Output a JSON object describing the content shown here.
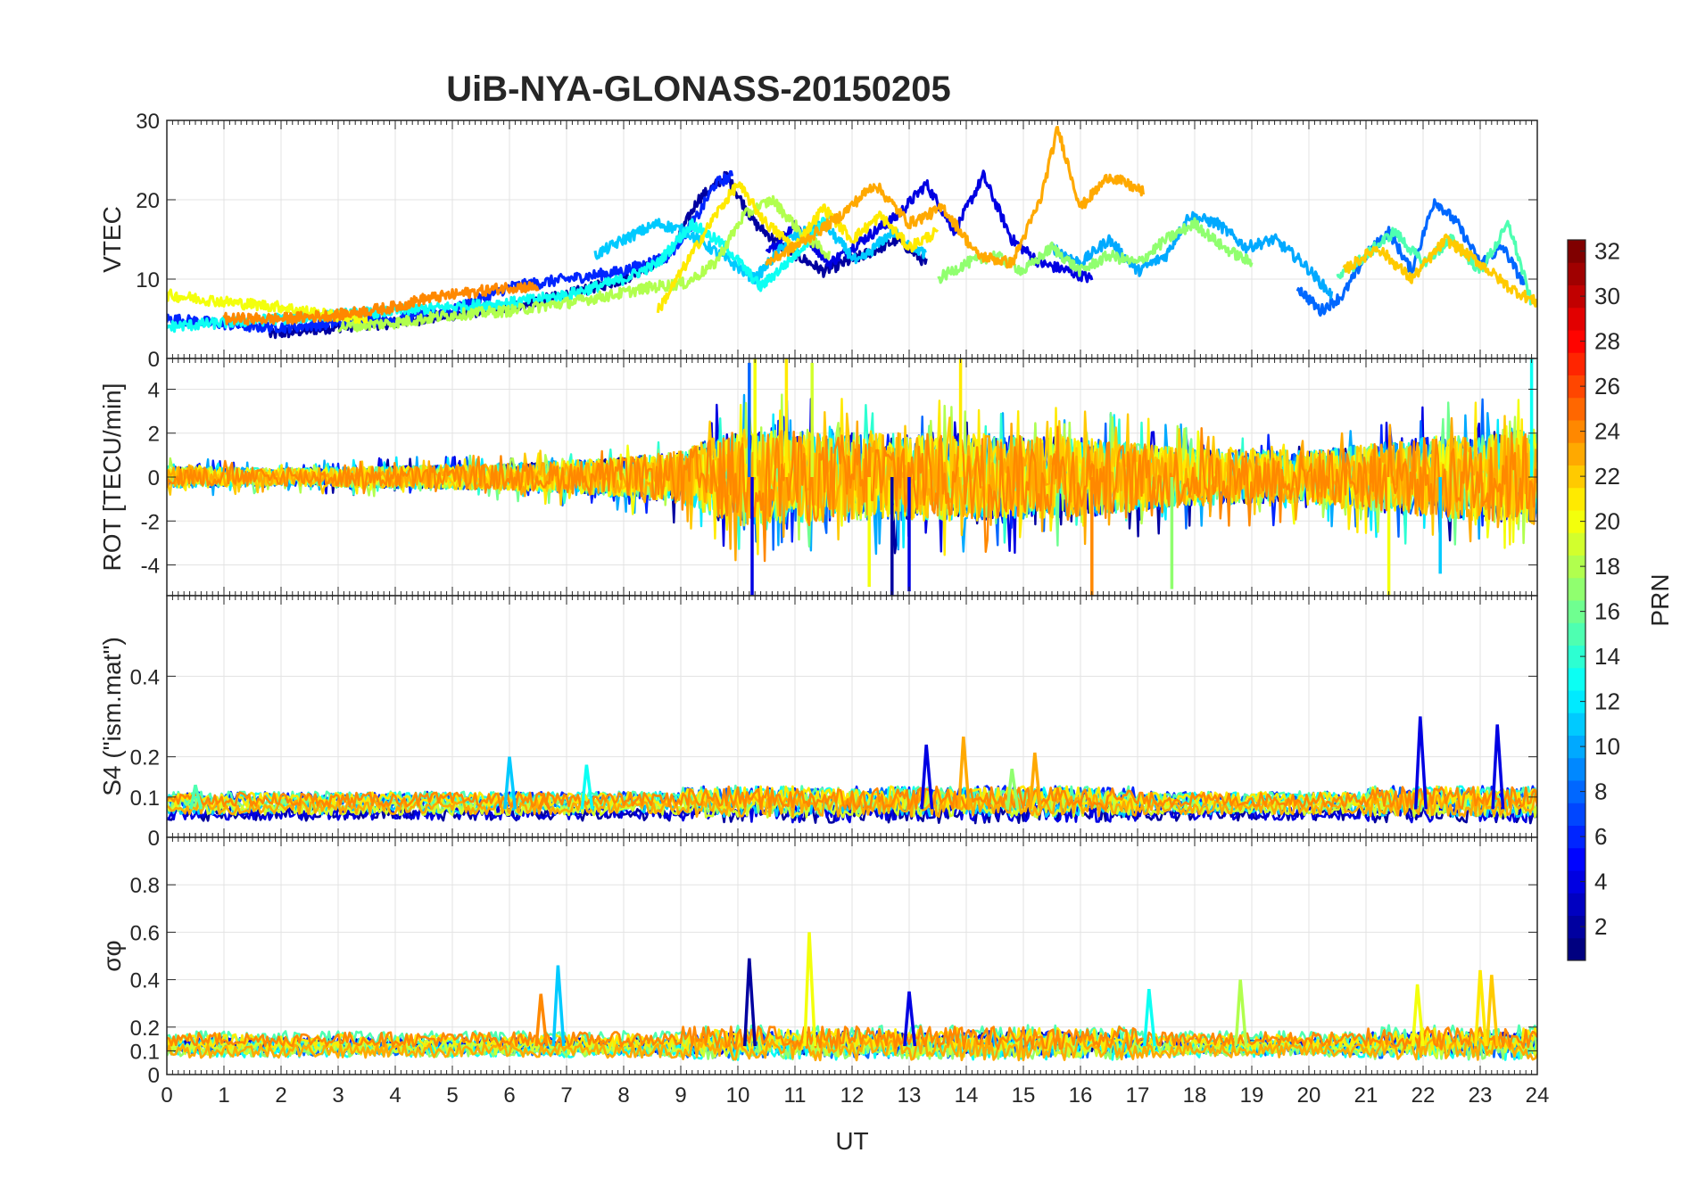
{
  "figure": {
    "title": "UiB-NYA-GLONASS-20150205",
    "xlabel": "UT"
  },
  "chart_data": [
    {
      "type": "line",
      "panel": "vtec",
      "ylabel": "VTEC",
      "xlim": [
        0,
        24
      ],
      "ylim": [
        0,
        30
      ],
      "yticks": [
        0,
        10,
        20,
        30
      ],
      "xticks": [
        0,
        1,
        2,
        3,
        4,
        5,
        6,
        7,
        8,
        9,
        10,
        11,
        12,
        13,
        14,
        15,
        16,
        17,
        18,
        19,
        20,
        21,
        22,
        23,
        24
      ],
      "grid": true,
      "series": [
        {
          "name": "PRN 2",
          "prn": 2,
          "x": [
            1.8,
            3,
            4,
            5,
            6,
            7,
            8,
            8.8,
            9.3,
            9.8,
            10.3,
            10.8,
            11.5,
            12.2,
            12.8,
            13.3
          ],
          "y": [
            3,
            4,
            4.5,
            5.5,
            6.5,
            8,
            10,
            13,
            20,
            23,
            17,
            14,
            11,
            13,
            15,
            12
          ]
        },
        {
          "name": "PRN 4",
          "prn": 4,
          "x": [
            10.5,
            11,
            11.6,
            12.2,
            12.8,
            13.3,
            13.8,
            14.3,
            14.8,
            15.3,
            15.8,
            16.2
          ],
          "y": [
            13,
            17,
            12,
            15,
            18,
            22,
            16,
            23,
            15,
            12,
            11,
            10
          ]
        },
        {
          "name": "PRN 6",
          "prn": 6,
          "x": [
            0,
            0.8,
            1.5,
            2.2,
            3,
            4,
            5,
            6,
            7,
            8,
            8.8,
            9.3,
            9.6,
            9.9
          ],
          "y": [
            5,
            4.5,
            4,
            4,
            4.5,
            5,
            6,
            9,
            10,
            11,
            13,
            18,
            22,
            23
          ]
        },
        {
          "name": "PRN 8",
          "prn": 8,
          "x": [
            19.8,
            20.2,
            20.6,
            21,
            21.4,
            21.8,
            22.2,
            22.6,
            23,
            23.4,
            23.8
          ],
          "y": [
            9,
            6,
            8,
            13,
            16,
            11,
            20,
            17,
            12,
            14,
            9
          ]
        },
        {
          "name": "PRN 10",
          "prn": 10,
          "x": [
            15.5,
            16,
            16.5,
            17,
            17.5,
            17.9,
            18.4,
            18.9,
            19.4,
            19.9,
            20.4
          ],
          "y": [
            14,
            12,
            15,
            11,
            13,
            18,
            17,
            14,
            15,
            12,
            8
          ]
        },
        {
          "name": "PRN 11",
          "prn": 11,
          "x": [
            7.5,
            8,
            8.6,
            9.1,
            9.7,
            10.3,
            10.9,
            11.5,
            12.1,
            12.7,
            13.3
          ],
          "y": [
            13,
            15,
            17,
            16,
            13,
            10,
            15,
            17,
            12,
            16,
            13
          ]
        },
        {
          "name": "PRN 13",
          "prn": 13,
          "x": [
            0,
            1,
            2,
            3,
            4,
            5,
            6,
            7,
            8,
            8.6,
            9.2,
            9.8,
            10.4,
            11,
            11.6
          ],
          "y": [
            4,
            4.5,
            5,
            5.5,
            6,
            6.5,
            7,
            8,
            10,
            12,
            17,
            14,
            9,
            13,
            18
          ]
        },
        {
          "name": "PRN 15",
          "prn": 15,
          "x": [
            20.5,
            21,
            21.5,
            22,
            22.5,
            23,
            23.5,
            23.9
          ],
          "y": [
            10,
            13,
            16,
            12,
            15,
            11,
            17,
            7
          ]
        },
        {
          "name": "PRN 17",
          "prn": 17,
          "x": [
            13.5,
            14,
            14.5,
            15,
            15.5,
            16,
            16.5,
            17,
            17.5,
            18,
            18.5,
            19
          ],
          "y": [
            10,
            12,
            13,
            11,
            14,
            11,
            13,
            12,
            15,
            17,
            14,
            12
          ]
        },
        {
          "name": "PRN 18",
          "prn": 18,
          "x": [
            3,
            4,
            5,
            6,
            7,
            7.8,
            8.5,
            9.1,
            9.6,
            10.1,
            10.6,
            11.1,
            11.6
          ],
          "y": [
            4,
            4.5,
            5.5,
            6,
            7,
            8,
            9,
            9.5,
            12,
            18,
            20,
            16,
            13
          ]
        },
        {
          "name": "PRN 20",
          "prn": 20,
          "x": [
            0,
            0.6,
            1.2,
            2,
            2.8,
            3.5
          ],
          "y": [
            8,
            7.5,
            7,
            6.5,
            5.5,
            5
          ]
        },
        {
          "name": "PRN 21",
          "prn": 21,
          "x": [
            8.6,
            9.1,
            9.6,
            10,
            10.5,
            11,
            11.5,
            12,
            12.5,
            13,
            13.5
          ],
          "y": [
            6,
            12,
            18,
            22,
            17,
            14,
            19,
            15,
            18,
            14,
            16
          ]
        },
        {
          "name": "PRN 22",
          "prn": 22,
          "x": [
            20.6,
            21.2,
            21.8,
            22.4,
            23,
            23.5,
            24
          ],
          "y": [
            11,
            14,
            10,
            15,
            12,
            9,
            7
          ]
        },
        {
          "name": "PRN 23",
          "prn": 23,
          "x": [
            10.5,
            11.2,
            11.8,
            12.4,
            13,
            13.6,
            14.2,
            14.8,
            15.3,
            15.6,
            16,
            16.5,
            17.1
          ],
          "y": [
            12,
            15,
            18,
            22,
            17,
            19,
            13,
            12,
            20,
            29,
            19,
            23,
            21
          ]
        },
        {
          "name": "PRN 24",
          "prn": 24,
          "x": [
            1,
            2,
            3,
            3.5,
            4,
            4.5,
            5,
            5.5,
            6,
            6.5
          ],
          "y": [
            5,
            5,
            5.5,
            6,
            6.5,
            7.5,
            8,
            8.5,
            9,
            9
          ]
        }
      ]
    },
    {
      "type": "line",
      "panel": "rot",
      "ylabel": "ROT [TECU/min]",
      "xlim": [
        0,
        24
      ],
      "ylim": [
        -5.4,
        5.4
      ],
      "yticks": [
        -4,
        -2,
        0,
        2,
        4
      ],
      "grid": true,
      "envelope": {
        "x": [
          0,
          2,
          4,
          6,
          8,
          9,
          10,
          12,
          14,
          16,
          18,
          20,
          22,
          24
        ],
        "amp": [
          0.5,
          0.4,
          0.5,
          0.6,
          0.9,
          1.2,
          2.2,
          2,
          2,
          1.8,
          1.3,
          1.2,
          1.8,
          2.2
        ]
      },
      "spikes": [
        {
          "prn": 4,
          "x": 10.25,
          "y": -5.4
        },
        {
          "prn": 20,
          "x": 10.3,
          "y": 5.4
        },
        {
          "prn": 21,
          "x": 10.85,
          "y": 5.4
        },
        {
          "prn": 8,
          "x": 10.2,
          "y": 5.2
        },
        {
          "prn": 2,
          "x": 12.7,
          "y": -5.4
        },
        {
          "prn": 4,
          "x": 13.0,
          "y": -5.2
        },
        {
          "prn": 20,
          "x": 12.3,
          "y": -5
        },
        {
          "prn": 21,
          "x": 13.9,
          "y": 5.4
        },
        {
          "prn": 24,
          "x": 16.2,
          "y": -5.4
        },
        {
          "prn": 17,
          "x": 17.6,
          "y": -5.1
        },
        {
          "prn": 20,
          "x": 21.4,
          "y": -5.4
        },
        {
          "prn": 13,
          "x": 23.9,
          "y": 5.4
        },
        {
          "prn": 11,
          "x": 22.3,
          "y": -4.4
        },
        {
          "prn": 19,
          "x": 11.3,
          "y": 5.2
        }
      ]
    },
    {
      "type": "line",
      "panel": "s4",
      "ylabel": "S4 (\"ism.mat\")",
      "xlim": [
        0,
        24
      ],
      "ylim": [
        0,
        0.6
      ],
      "yticks": [
        0,
        0.1,
        0.2,
        0.4
      ],
      "grid": true,
      "baseline": 0.07,
      "peaks": [
        {
          "prn": 11,
          "x": 6.0,
          "y": 0.2
        },
        {
          "prn": 13,
          "x": 7.35,
          "y": 0.18
        },
        {
          "prn": 4,
          "x": 13.3,
          "y": 0.23
        },
        {
          "prn": 23,
          "x": 13.95,
          "y": 0.25
        },
        {
          "prn": 23,
          "x": 15.2,
          "y": 0.21
        },
        {
          "prn": 4,
          "x": 21.95,
          "y": 0.3
        },
        {
          "prn": 4,
          "x": 23.3,
          "y": 0.28
        },
        {
          "prn": 15,
          "x": 0.5,
          "y": 0.13
        },
        {
          "prn": 24,
          "x": 6.6,
          "y": 0.1
        },
        {
          "prn": 17,
          "x": 14.8,
          "y": 0.17
        }
      ]
    },
    {
      "type": "line",
      "panel": "sigma_phi",
      "ylabel": "σφ",
      "xlim": [
        0,
        24
      ],
      "ylim": [
        0,
        1
      ],
      "yticks": [
        0,
        0.1,
        0.2,
        0.4,
        0.6,
        0.8
      ],
      "grid": true,
      "baseline": 0.12,
      "peaks": [
        {
          "prn": 11,
          "x": 6.85,
          "y": 0.46
        },
        {
          "prn": 24,
          "x": 6.55,
          "y": 0.34
        },
        {
          "prn": 2,
          "x": 10.2,
          "y": 0.49
        },
        {
          "prn": 20,
          "x": 11.25,
          "y": 0.6
        },
        {
          "prn": 18,
          "x": 18.8,
          "y": 0.4
        },
        {
          "prn": 22,
          "x": 23.2,
          "y": 0.42
        },
        {
          "prn": 21,
          "x": 23.0,
          "y": 0.44
        },
        {
          "prn": 4,
          "x": 13.0,
          "y": 0.35
        },
        {
          "prn": 13,
          "x": 17.2,
          "y": 0.36
        },
        {
          "prn": 20,
          "x": 21.9,
          "y": 0.38
        }
      ]
    }
  ],
  "colorbar": {
    "label": "PRN",
    "min": 1,
    "max": 32,
    "ticks": [
      2,
      4,
      6,
      8,
      10,
      12,
      14,
      16,
      18,
      20,
      22,
      24,
      26,
      28,
      30,
      32
    ],
    "colormap": "jet"
  }
}
